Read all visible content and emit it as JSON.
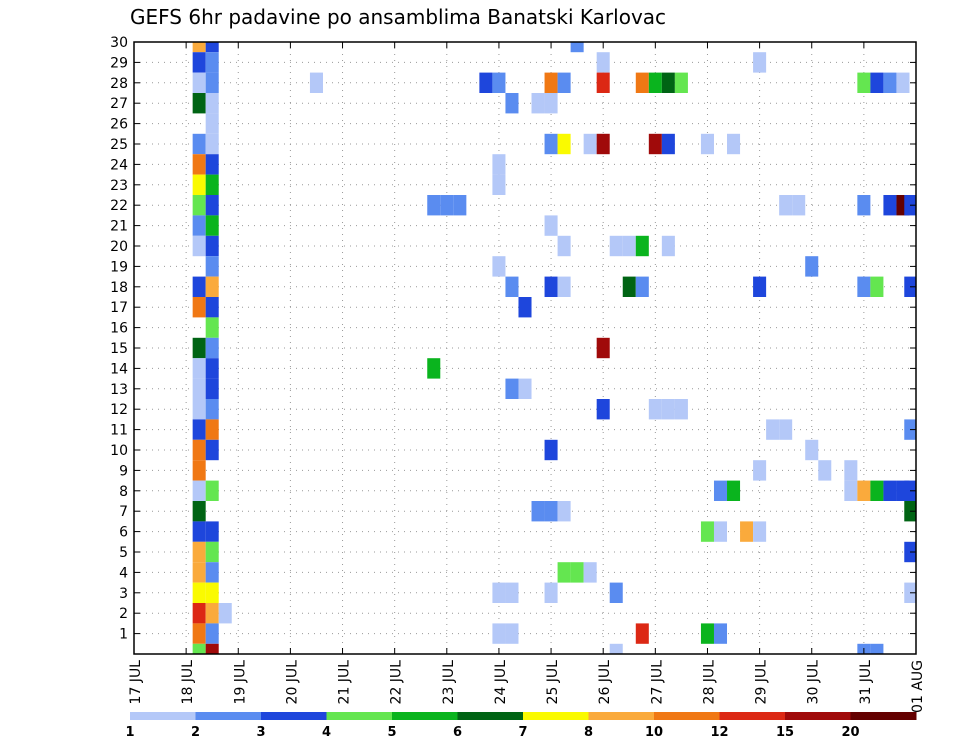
{
  "chart_data": {
    "type": "heatmap",
    "title": "GEFS 6hr padavine po ansamblima Banatski Karlovac",
    "x_tick_labels": [
      "17 JUL",
      "18 JUL",
      "19 JUL",
      "20 JUL",
      "21 JUL",
      "22 JUL",
      "23 JUL",
      "24 JUL",
      "25 JUL",
      "26 JUL",
      "27 JUL",
      "28 JUL",
      "29 JUL",
      "30 JUL",
      "31 JUL",
      "01 AUG"
    ],
    "y_ticks": [
      1,
      2,
      3,
      4,
      5,
      6,
      7,
      8,
      9,
      10,
      11,
      12,
      13,
      14,
      15,
      16,
      17,
      18,
      19,
      20,
      21,
      22,
      23,
      24,
      25,
      26,
      27,
      28,
      29,
      30
    ],
    "x_range_days": [
      0,
      15
    ],
    "y_range": [
      0,
      30
    ],
    "grid": true,
    "colorbar": {
      "position": "bottom",
      "colors": [
        "#b4c8f8",
        "#5a8cf0",
        "#1e46dc",
        "#64e650",
        "#0ab41e",
        "#006414",
        "#fafa00",
        "#faaa3c",
        "#f07814",
        "#dc2814",
        "#a00a0a",
        "#640000"
      ],
      "labels": [
        "1",
        "2",
        "3",
        "4",
        "5",
        "6",
        "7",
        "8",
        "10",
        "12",
        "15",
        "20"
      ]
    },
    "step_days": 0.25,
    "cells": [
      {
        "x": 1.25,
        "m": 30,
        "c": 7
      },
      {
        "x": 1.5,
        "m": 30,
        "c": 2
      },
      {
        "x": 1.25,
        "m": 29,
        "c": 2
      },
      {
        "x": 1.5,
        "m": 29,
        "c": 1
      },
      {
        "x": 1.25,
        "m": 28,
        "c": 0
      },
      {
        "x": 1.5,
        "m": 28,
        "c": 1
      },
      {
        "x": 1.25,
        "m": 27,
        "c": 5
      },
      {
        "x": 1.5,
        "m": 27,
        "c": 0
      },
      {
        "x": 1.5,
        "m": 26,
        "c": 0
      },
      {
        "x": 1.25,
        "m": 25,
        "c": 1
      },
      {
        "x": 1.5,
        "m": 25,
        "c": 0
      },
      {
        "x": 1.25,
        "m": 24,
        "c": 8
      },
      {
        "x": 1.5,
        "m": 24,
        "c": 2
      },
      {
        "x": 1.25,
        "m": 23,
        "c": 6
      },
      {
        "x": 1.5,
        "m": 23,
        "c": 4
      },
      {
        "x": 1.25,
        "m": 22,
        "c": 3
      },
      {
        "x": 1.5,
        "m": 22,
        "c": 2
      },
      {
        "x": 1.25,
        "m": 21,
        "c": 1
      },
      {
        "x": 1.5,
        "m": 21,
        "c": 4
      },
      {
        "x": 1.25,
        "m": 20,
        "c": 0
      },
      {
        "x": 1.5,
        "m": 20,
        "c": 2
      },
      {
        "x": 1.5,
        "m": 19,
        "c": 1
      },
      {
        "x": 1.25,
        "m": 18,
        "c": 2
      },
      {
        "x": 1.5,
        "m": 18,
        "c": 7
      },
      {
        "x": 1.25,
        "m": 17,
        "c": 8
      },
      {
        "x": 1.5,
        "m": 17,
        "c": 2
      },
      {
        "x": 1.5,
        "m": 16,
        "c": 3
      },
      {
        "x": 1.25,
        "m": 15,
        "c": 5
      },
      {
        "x": 1.5,
        "m": 15,
        "c": 1
      },
      {
        "x": 1.25,
        "m": 14,
        "c": 0
      },
      {
        "x": 1.5,
        "m": 14,
        "c": 2
      },
      {
        "x": 1.25,
        "m": 13,
        "c": 0
      },
      {
        "x": 1.5,
        "m": 13,
        "c": 2
      },
      {
        "x": 1.25,
        "m": 12,
        "c": 0
      },
      {
        "x": 1.5,
        "m": 12,
        "c": 1
      },
      {
        "x": 1.25,
        "m": 11,
        "c": 2
      },
      {
        "x": 1.5,
        "m": 11,
        "c": 8
      },
      {
        "x": 1.25,
        "m": 10,
        "c": 8
      },
      {
        "x": 1.5,
        "m": 10,
        "c": 2
      },
      {
        "x": 1.25,
        "m": 9,
        "c": 8
      },
      {
        "x": 1.25,
        "m": 8,
        "c": 0
      },
      {
        "x": 1.5,
        "m": 8,
        "c": 3
      },
      {
        "x": 1.25,
        "m": 7,
        "c": 5
      },
      {
        "x": 1.25,
        "m": 6,
        "c": 2
      },
      {
        "x": 1.5,
        "m": 6,
        "c": 2
      },
      {
        "x": 1.25,
        "m": 5,
        "c": 7
      },
      {
        "x": 1.5,
        "m": 5,
        "c": 3
      },
      {
        "x": 1.25,
        "m": 4,
        "c": 7
      },
      {
        "x": 1.5,
        "m": 4,
        "c": 1
      },
      {
        "x": 1.25,
        "m": 3,
        "c": 6
      },
      {
        "x": 1.5,
        "m": 3,
        "c": 6
      },
      {
        "x": 1.25,
        "m": 2,
        "c": 9
      },
      {
        "x": 1.5,
        "m": 2,
        "c": 7
      },
      {
        "x": 1.25,
        "m": 1,
        "c": 8
      },
      {
        "x": 1.5,
        "m": 1,
        "c": 1
      },
      {
        "x": 1.25,
        "m": 0,
        "c": 3
      },
      {
        "x": 1.5,
        "m": 0,
        "c": 10
      },
      {
        "x": 8.5,
        "m": 30,
        "c": 1
      },
      {
        "x": 9.0,
        "m": 29,
        "c": 0
      },
      {
        "x": 12.0,
        "m": 29,
        "c": 0
      },
      {
        "x": 3.5,
        "m": 28,
        "c": 0
      },
      {
        "x": 6.75,
        "m": 28,
        "c": 2
      },
      {
        "x": 7.0,
        "m": 28,
        "c": 1
      },
      {
        "x": 8.0,
        "m": 28,
        "c": 8
      },
      {
        "x": 8.25,
        "m": 28,
        "c": 1
      },
      {
        "x": 9.0,
        "m": 28,
        "c": 9
      },
      {
        "x": 9.75,
        "m": 28,
        "c": 8
      },
      {
        "x": 10.0,
        "m": 28,
        "c": 4
      },
      {
        "x": 10.25,
        "m": 28,
        "c": 5
      },
      {
        "x": 10.5,
        "m": 28,
        "c": 3
      },
      {
        "x": 14.0,
        "m": 28,
        "c": 3
      },
      {
        "x": 14.25,
        "m": 28,
        "c": 2
      },
      {
        "x": 14.5,
        "m": 28,
        "c": 1
      },
      {
        "x": 14.75,
        "m": 28,
        "c": 0
      },
      {
        "x": 7.25,
        "m": 27,
        "c": 1
      },
      {
        "x": 7.75,
        "m": 27,
        "c": 0
      },
      {
        "x": 8.0,
        "m": 27,
        "c": 0
      },
      {
        "x": 8.0,
        "m": 25,
        "c": 1
      },
      {
        "x": 8.25,
        "m": 25,
        "c": 6
      },
      {
        "x": 8.75,
        "m": 25,
        "c": 0
      },
      {
        "x": 9.0,
        "m": 25,
        "c": 10
      },
      {
        "x": 10.0,
        "m": 25,
        "c": 10
      },
      {
        "x": 10.25,
        "m": 25,
        "c": 2
      },
      {
        "x": 11.0,
        "m": 25,
        "c": 0
      },
      {
        "x": 11.5,
        "m": 25,
        "c": 0
      },
      {
        "x": 7.0,
        "m": 24,
        "c": 0
      },
      {
        "x": 7.0,
        "m": 23,
        "c": 0
      },
      {
        "x": 5.75,
        "m": 22,
        "c": 1
      },
      {
        "x": 6.0,
        "m": 22,
        "c": 1
      },
      {
        "x": 6.25,
        "m": 22,
        "c": 1
      },
      {
        "x": 12.5,
        "m": 22,
        "c": 0
      },
      {
        "x": 12.75,
        "m": 22,
        "c": 0
      },
      {
        "x": 14.0,
        "m": 22,
        "c": 1
      },
      {
        "x": 14.5,
        "m": 22,
        "c": 2
      },
      {
        "x": 14.75,
        "m": 22,
        "c": 11
      },
      {
        "x": 14.9,
        "m": 22,
        "c": 2
      },
      {
        "x": 8.0,
        "m": 21,
        "c": 0
      },
      {
        "x": 8.25,
        "m": 20,
        "c": 0
      },
      {
        "x": 9.25,
        "m": 20,
        "c": 0
      },
      {
        "x": 9.5,
        "m": 20,
        "c": 0
      },
      {
        "x": 9.75,
        "m": 20,
        "c": 4
      },
      {
        "x": 10.25,
        "m": 20,
        "c": 0
      },
      {
        "x": 7.0,
        "m": 19,
        "c": 0
      },
      {
        "x": 13.0,
        "m": 19,
        "c": 1
      },
      {
        "x": 7.25,
        "m": 18,
        "c": 1
      },
      {
        "x": 8.0,
        "m": 18,
        "c": 2
      },
      {
        "x": 8.25,
        "m": 18,
        "c": 0
      },
      {
        "x": 9.5,
        "m": 18,
        "c": 5
      },
      {
        "x": 9.75,
        "m": 18,
        "c": 1
      },
      {
        "x": 12.0,
        "m": 18,
        "c": 2
      },
      {
        "x": 14.0,
        "m": 18,
        "c": 1
      },
      {
        "x": 14.25,
        "m": 18,
        "c": 3
      },
      {
        "x": 14.9,
        "m": 18,
        "c": 2
      },
      {
        "x": 7.5,
        "m": 17,
        "c": 2
      },
      {
        "x": 9.0,
        "m": 15,
        "c": 10
      },
      {
        "x": 5.75,
        "m": 14,
        "c": 4
      },
      {
        "x": 7.25,
        "m": 13,
        "c": 1
      },
      {
        "x": 7.5,
        "m": 13,
        "c": 0
      },
      {
        "x": 9.0,
        "m": 12,
        "c": 2
      },
      {
        "x": 10.0,
        "m": 12,
        "c": 0
      },
      {
        "x": 10.25,
        "m": 12,
        "c": 0
      },
      {
        "x": 10.5,
        "m": 12,
        "c": 0
      },
      {
        "x": 12.25,
        "m": 11,
        "c": 0
      },
      {
        "x": 12.5,
        "m": 11,
        "c": 0
      },
      {
        "x": 14.9,
        "m": 11,
        "c": 1
      },
      {
        "x": 8.0,
        "m": 10,
        "c": 2
      },
      {
        "x": 13.0,
        "m": 10,
        "c": 0
      },
      {
        "x": 12.0,
        "m": 9,
        "c": 0
      },
      {
        "x": 13.25,
        "m": 9,
        "c": 0
      },
      {
        "x": 13.75,
        "m": 9,
        "c": 0
      },
      {
        "x": 11.25,
        "m": 8,
        "c": 1
      },
      {
        "x": 11.5,
        "m": 8,
        "c": 4
      },
      {
        "x": 13.75,
        "m": 8,
        "c": 0
      },
      {
        "x": 14.0,
        "m": 8,
        "c": 7
      },
      {
        "x": 14.25,
        "m": 8,
        "c": 4
      },
      {
        "x": 14.5,
        "m": 8,
        "c": 2
      },
      {
        "x": 14.75,
        "m": 8,
        "c": 2
      },
      {
        "x": 14.9,
        "m": 8,
        "c": 2
      },
      {
        "x": 7.75,
        "m": 7,
        "c": 1
      },
      {
        "x": 8.0,
        "m": 7,
        "c": 1
      },
      {
        "x": 8.25,
        "m": 7,
        "c": 0
      },
      {
        "x": 14.9,
        "m": 7,
        "c": 5
      },
      {
        "x": 11.0,
        "m": 6,
        "c": 3
      },
      {
        "x": 11.25,
        "m": 6,
        "c": 0
      },
      {
        "x": 11.75,
        "m": 6,
        "c": 7
      },
      {
        "x": 12.0,
        "m": 6,
        "c": 0
      },
      {
        "x": 14.9,
        "m": 5,
        "c": 2
      },
      {
        "x": 8.25,
        "m": 4,
        "c": 3
      },
      {
        "x": 8.5,
        "m": 4,
        "c": 3
      },
      {
        "x": 8.75,
        "m": 4,
        "c": 0
      },
      {
        "x": 7.0,
        "m": 3,
        "c": 0
      },
      {
        "x": 7.25,
        "m": 3,
        "c": 0
      },
      {
        "x": 8.0,
        "m": 3,
        "c": 0
      },
      {
        "x": 9.25,
        "m": 3,
        "c": 1
      },
      {
        "x": 14.9,
        "m": 3,
        "c": 0
      },
      {
        "x": 1.75,
        "m": 2,
        "c": 0
      },
      {
        "x": 7.0,
        "m": 1,
        "c": 0
      },
      {
        "x": 7.25,
        "m": 1,
        "c": 0
      },
      {
        "x": 9.75,
        "m": 1,
        "c": 9
      },
      {
        "x": 11.0,
        "m": 1,
        "c": 4
      },
      {
        "x": 11.25,
        "m": 1,
        "c": 1
      },
      {
        "x": 9.25,
        "m": 0,
        "c": 0
      },
      {
        "x": 14.0,
        "m": 0,
        "c": 1
      },
      {
        "x": 14.25,
        "m": 0,
        "c": 1
      }
    ]
  }
}
